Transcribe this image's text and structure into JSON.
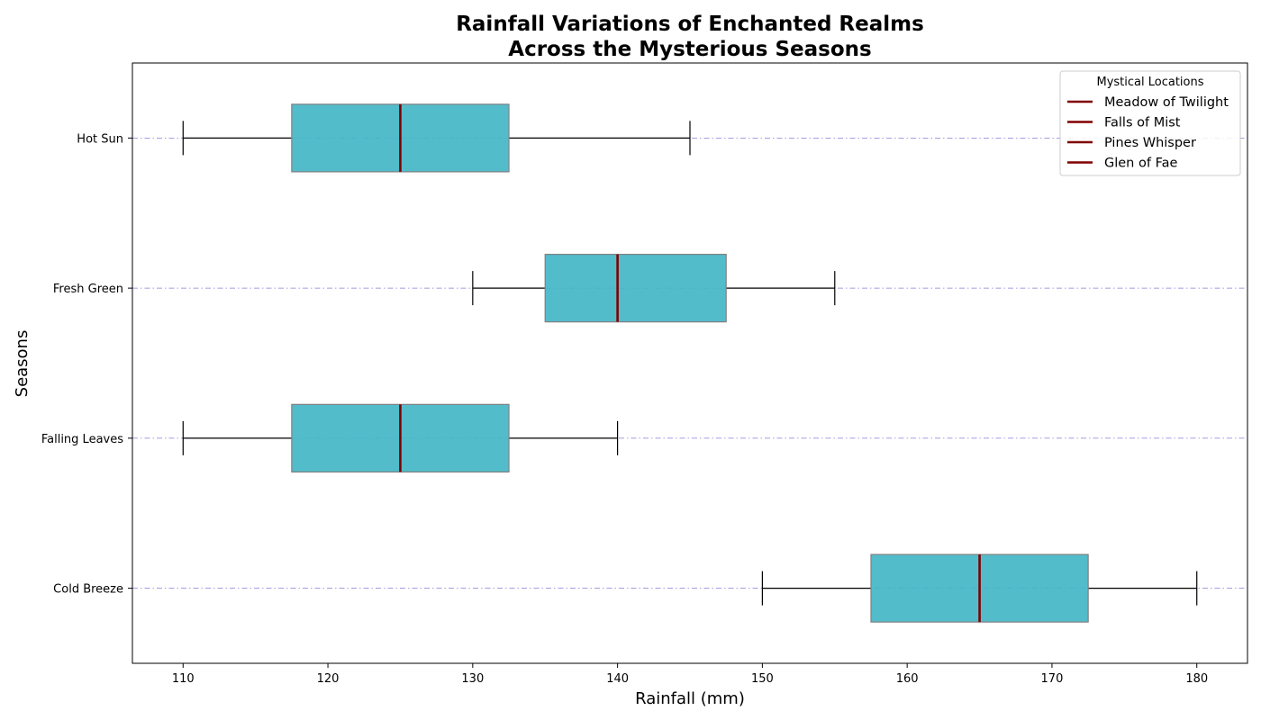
{
  "chart_data": {
    "type": "boxplot",
    "orientation": "horizontal",
    "title": [
      "Rainfall Variations of Enchanted Realms",
      "Across the Mysterious Seasons"
    ],
    "xlabel": "Rainfall (mm)",
    "ylabel": "Seasons",
    "xlim": [
      106.5,
      183.5
    ],
    "xticks": [
      110,
      120,
      130,
      140,
      150,
      160,
      170,
      180
    ],
    "categories": [
      "Cold Breeze",
      "Falling Leaves",
      "Fresh Green",
      "Hot Sun"
    ],
    "boxes": [
      {
        "category": "Cold Breeze",
        "whislo": 150,
        "q1": 157.5,
        "med": 165,
        "q3": 172.5,
        "whishi": 180
      },
      {
        "category": "Falling Leaves",
        "whislo": 110,
        "q1": 117.5,
        "med": 125,
        "q3": 132.5,
        "whishi": 140
      },
      {
        "category": "Fresh Green",
        "whislo": 130,
        "q1": 135,
        "med": 140,
        "q3": 147.5,
        "whishi": 155
      },
      {
        "category": "Hot Sun",
        "whislo": 110,
        "q1": 117.5,
        "med": 125,
        "q3": 132.5,
        "whishi": 145
      }
    ],
    "legend": {
      "title": "Mystical Locations",
      "position": "top-right",
      "entries": [
        "Meadow of Twilight",
        "Falls of Mist",
        "Pines Whisper",
        "Glen of Fae"
      ]
    },
    "colors": {
      "box_fill": "#40b5c5",
      "box_edge": "#808080",
      "median": "#800000",
      "whisker": "#000000",
      "grid": "#6a5acd"
    },
    "grid": "horizontal dash-dot"
  }
}
